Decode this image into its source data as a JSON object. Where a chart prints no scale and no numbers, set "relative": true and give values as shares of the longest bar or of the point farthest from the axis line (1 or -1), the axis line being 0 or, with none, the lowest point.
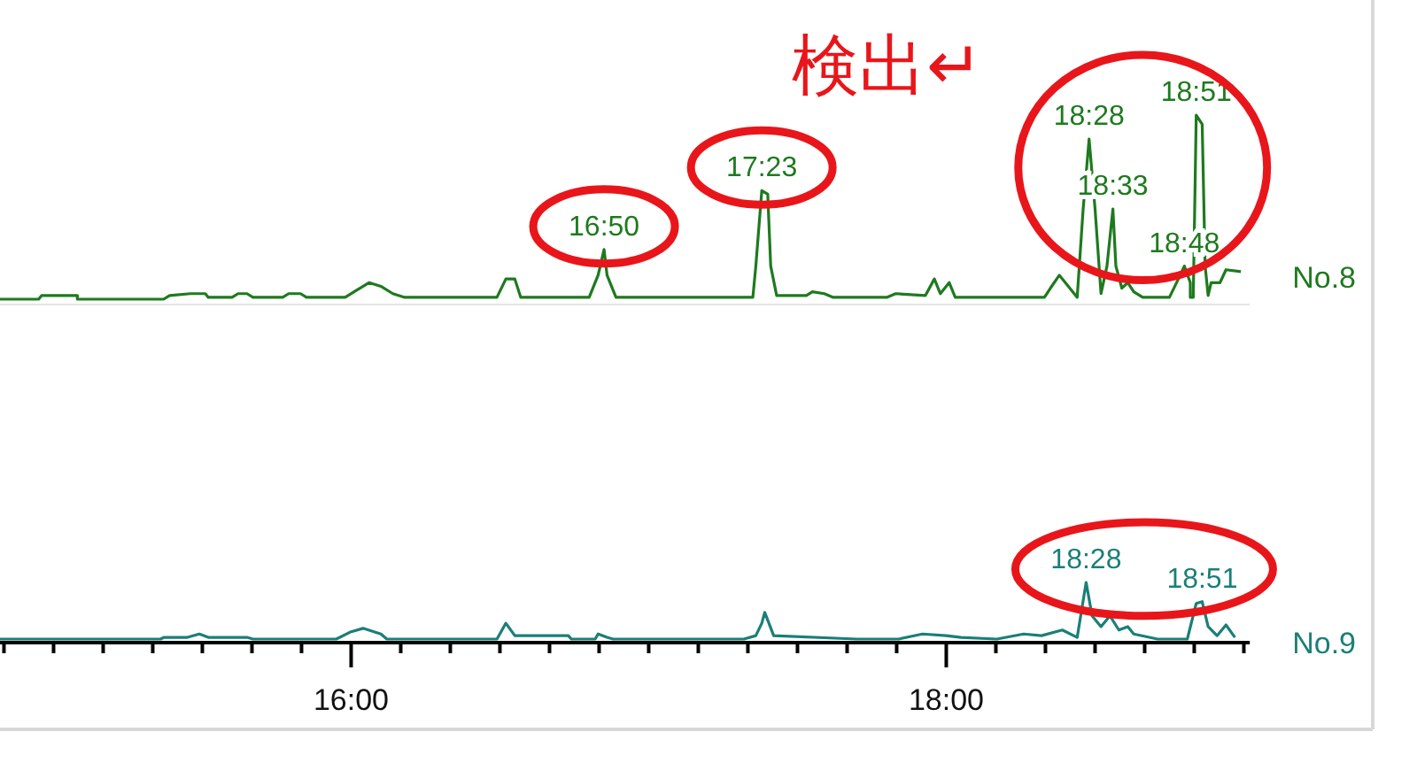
{
  "chart_data": [
    {
      "type": "line",
      "relative": true,
      "xlim": [
        14.82,
        19.02
      ],
      "tick_labels": false,
      "series": [
        {
          "name": "No.8",
          "color": "#1e7a1e",
          "x": [
            14.82,
            14.95,
            14.96,
            15.08,
            15.08,
            15.37,
            15.39,
            15.46,
            15.51,
            15.52,
            15.6,
            15.62,
            15.65,
            15.67,
            15.77,
            15.79,
            15.83,
            15.85,
            15.98,
            16.01,
            16.06,
            16.1,
            16.14,
            16.18,
            16.49,
            16.52,
            16.55,
            16.57,
            16.8,
            16.83,
            16.85,
            16.86,
            16.89,
            17.35,
            17.36,
            17.38,
            17.4,
            17.41,
            17.43,
            17.53,
            17.55,
            17.59,
            17.62,
            17.8,
            17.83,
            17.93,
            17.96,
            17.98,
            18.01,
            18.03,
            18.33,
            18.35,
            18.38,
            18.4,
            18.44,
            18.46,
            18.48,
            18.5,
            18.52,
            18.54,
            18.56,
            18.57,
            18.59,
            18.61,
            18.63,
            18.66,
            18.75,
            18.78,
            18.8,
            18.82,
            18.82,
            18.83,
            18.84,
            18.86,
            18.87,
            18.88,
            18.89,
            18.92,
            18.94,
            18.99
          ],
          "values": [
            0,
            0,
            0.02,
            0.02,
            0,
            0,
            0.02,
            0.03,
            0.03,
            0.01,
            0.01,
            0.03,
            0.03,
            0.01,
            0.01,
            0.03,
            0.03,
            0.01,
            0.01,
            0.04,
            0.09,
            0.07,
            0.03,
            0.01,
            0.01,
            0.11,
            0.11,
            0.01,
            0.01,
            0.13,
            0.27,
            0.13,
            0.01,
            0.01,
            0.18,
            0.59,
            0.57,
            0.18,
            0.02,
            0.02,
            0.04,
            0.03,
            0.01,
            0.01,
            0.03,
            0.02,
            0.11,
            0.03,
            0.09,
            0.01,
            0.01,
            0.06,
            0.13,
            0.09,
            0.01,
            0.49,
            0.87,
            0.49,
            0.03,
            0.18,
            0.49,
            0.18,
            0.06,
            0.09,
            0.04,
            0.01,
            0.01,
            0.11,
            0.18,
            0.09,
            0.01,
            0.01,
            1,
            0.95,
            0.18,
            0.02,
            0.09,
            0.09,
            0.16,
            0.15
          ]
        }
      ],
      "annotations": [
        "検出↵",
        {
          "text": "16:50",
          "x": 16.85,
          "y": 0.27
        },
        {
          "text": "17:23",
          "x": 17.38,
          "y": 0.59
        },
        {
          "text": "18:28",
          "x": 18.48,
          "y": 0.87
        },
        {
          "text": "18:33",
          "x": 18.56,
          "y": 0.49
        },
        {
          "text": "18:48",
          "x": 18.8,
          "y": 0.18
        },
        {
          "text": "18:51",
          "x": 18.84,
          "y": 1
        }
      ]
    },
    {
      "type": "line",
      "relative": true,
      "xlim": [
        14.82,
        19.02
      ],
      "tick_labels": "x",
      "xticks": [
        {
          "value": 14.8333,
          "label": null
        },
        {
          "value": 15,
          "label": null
        },
        {
          "value": 15.1667,
          "label": null
        },
        {
          "value": 15.3333,
          "label": null
        },
        {
          "value": 15.5,
          "label": null
        },
        {
          "value": 15.6667,
          "label": null
        },
        {
          "value": 15.8333,
          "label": null
        },
        {
          "value": 16,
          "label": "16:00"
        },
        {
          "value": 16.1667,
          "label": null
        },
        {
          "value": 16.3333,
          "label": null
        },
        {
          "value": 16.5,
          "label": null
        },
        {
          "value": 16.6667,
          "label": null
        },
        {
          "value": 16.8333,
          "label": null
        },
        {
          "value": 17,
          "label": null
        },
        {
          "value": 17.1667,
          "label": null
        },
        {
          "value": 17.3333,
          "label": null
        },
        {
          "value": 17.5,
          "label": null
        },
        {
          "value": 17.6667,
          "label": null
        },
        {
          "value": 17.8333,
          "label": null
        },
        {
          "value": 18,
          "label": "18:00"
        },
        {
          "value": 18.1667,
          "label": null
        },
        {
          "value": 18.3333,
          "label": null
        },
        {
          "value": 18.5,
          "label": null
        },
        {
          "value": 18.6667,
          "label": null
        },
        {
          "value": 18.8333,
          "label": null
        },
        {
          "value": 19,
          "label": null
        }
      ],
      "series": [
        {
          "name": "No.9",
          "color": "#1a7f78",
          "x": [
            14.82,
            15.36,
            15.37,
            15.45,
            15.49,
            15.52,
            15.65,
            15.67,
            15.76,
            15.77,
            15.95,
            16.0,
            16.04,
            16.1,
            16.12,
            16.49,
            16.52,
            16.55,
            16.73,
            16.74,
            16.82,
            16.83,
            16.86,
            16.88,
            17.32,
            17.36,
            17.38,
            17.39,
            17.42,
            17.7,
            17.84,
            17.92,
            18.0,
            18.05,
            18.17,
            18.26,
            18.32,
            18.39,
            18.44,
            18.47,
            18.49,
            18.52,
            18.55,
            18.58,
            18.61,
            18.63,
            18.71,
            18.81,
            18.84,
            18.86,
            18.88,
            18.91,
            18.94,
            18.97
          ],
          "values": [
            0,
            0,
            0.03,
            0.03,
            0.09,
            0.03,
            0.03,
            0,
            0,
            0,
            0,
            0.13,
            0.19,
            0.09,
            0,
            0,
            0.28,
            0.06,
            0.06,
            0,
            0,
            0.09,
            0.03,
            0,
            0,
            0.06,
            0.28,
            0.47,
            0.06,
            0,
            0,
            0.09,
            0.06,
            0.03,
            0,
            0.09,
            0.06,
            0.16,
            0.03,
            1,
            0.41,
            0.22,
            0.41,
            0.16,
            0.22,
            0.09,
            0,
            0,
            0.63,
            0.66,
            0.22,
            0.06,
            0.25,
            0.03
          ]
        }
      ],
      "annotations": [
        {
          "text": "18:28",
          "x": 18.47,
          "y": 1
        },
        {
          "text": "18:51",
          "x": 18.86,
          "y": 0.66
        }
      ]
    }
  ]
}
